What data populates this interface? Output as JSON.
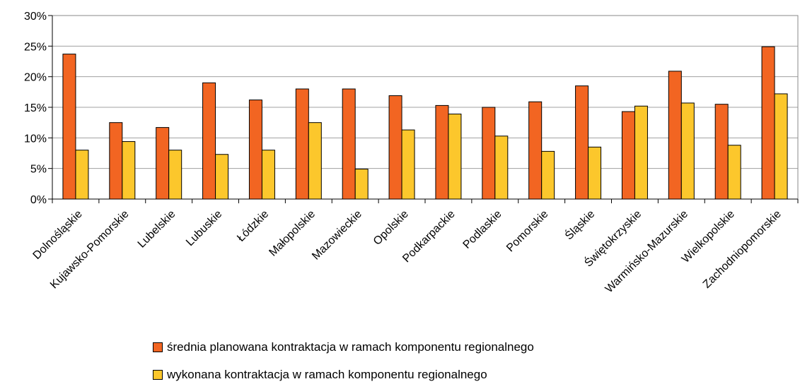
{
  "chart_data": {
    "type": "bar",
    "categories": [
      "Dolnośląskie",
      "Kujawsko-Pomorskie",
      "Lubelskie",
      "Lubuskie",
      "Łódzkie",
      "Małopolskie",
      "Mazowieckie",
      "Opolskie",
      "Podkarpackie",
      "Podlaskie",
      "Pomorskie",
      "Śląskie",
      "Świętokrzyskie",
      "Warmińsko-Mazurskie",
      "Wielkopolskie",
      "Zachodniopomorskie"
    ],
    "series": [
      {
        "name": "średnia planowana kontraktacja w ramach komponentu regionalnego",
        "color": "#f26522",
        "values": [
          23.7,
          12.5,
          11.7,
          19.0,
          16.2,
          18.0,
          18.0,
          16.9,
          15.3,
          15.0,
          15.9,
          18.5,
          14.3,
          20.9,
          15.5,
          24.9
        ]
      },
      {
        "name": "wykonana kontraktacja w ramach komponentu regionalnego",
        "color": "#fcc72c",
        "values": [
          8.0,
          9.4,
          8.0,
          7.3,
          8.0,
          12.5,
          4.9,
          11.3,
          13.9,
          10.3,
          7.8,
          8.5,
          15.2,
          15.7,
          8.8,
          17.2
        ]
      }
    ],
    "yticks": [
      "0%",
      "5%",
      "10%",
      "15%",
      "20%",
      "25%",
      "30%"
    ],
    "ylim": [
      0,
      30
    ],
    "grid": true,
    "legend_position": "bottom"
  }
}
